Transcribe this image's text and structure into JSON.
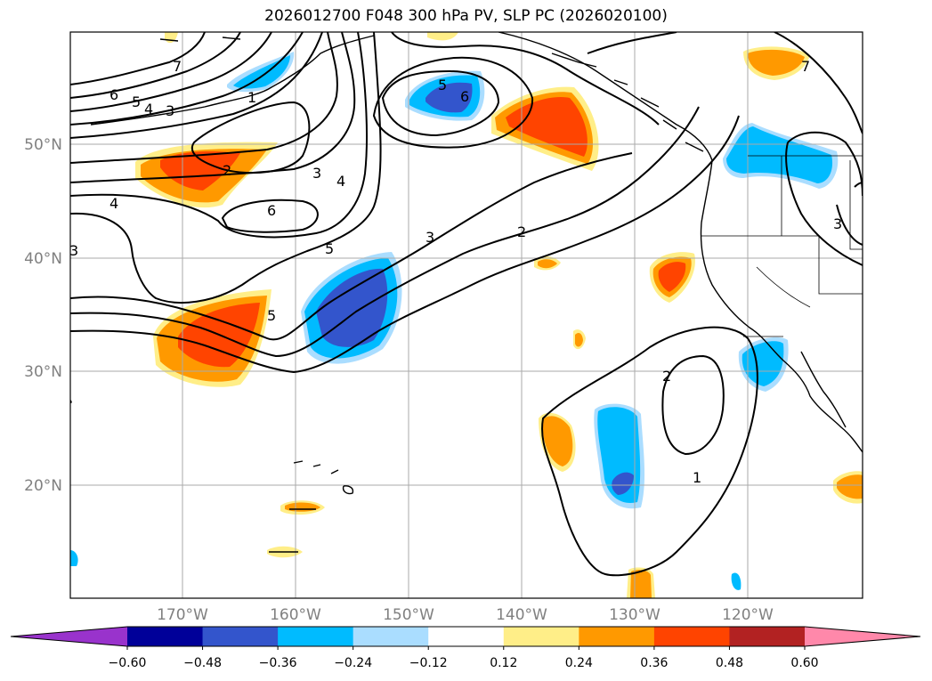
{
  "title": "2026012700 F048 300 hPa PV, SLP PC (2026020100)",
  "lat_labels": [
    "50°N",
    "40°N",
    "30°N",
    "20°N"
  ],
  "lon_labels": [
    "170°W",
    "160°W",
    "150°W",
    "140°W",
    "130°W",
    "120°W"
  ],
  "colorbar": {
    "ticks": [
      "−0.60",
      "−0.48",
      "−0.36",
      "−0.24",
      "−0.12",
      "0.12",
      "0.24",
      "0.36",
      "0.48",
      "0.60"
    ],
    "colors": [
      "#9933cc",
      "#000099",
      "#3355cc",
      "#00bbff",
      "#aaddff",
      "#ffffff",
      "#ffee88",
      "#ff9900",
      "#ff4400",
      "#b22222",
      "#ff88aa"
    ]
  },
  "contour_labels": [
    "7",
    "6",
    "5",
    "4",
    "3",
    "1",
    "6",
    "5",
    "2",
    "3",
    "4",
    "6",
    "5",
    "4",
    "3",
    "2",
    "5",
    "2",
    "1",
    "7",
    "3",
    "3"
  ],
  "colors": {
    "grid": "#aaaaaa",
    "label": "#808080",
    "contour": "#000000"
  }
}
